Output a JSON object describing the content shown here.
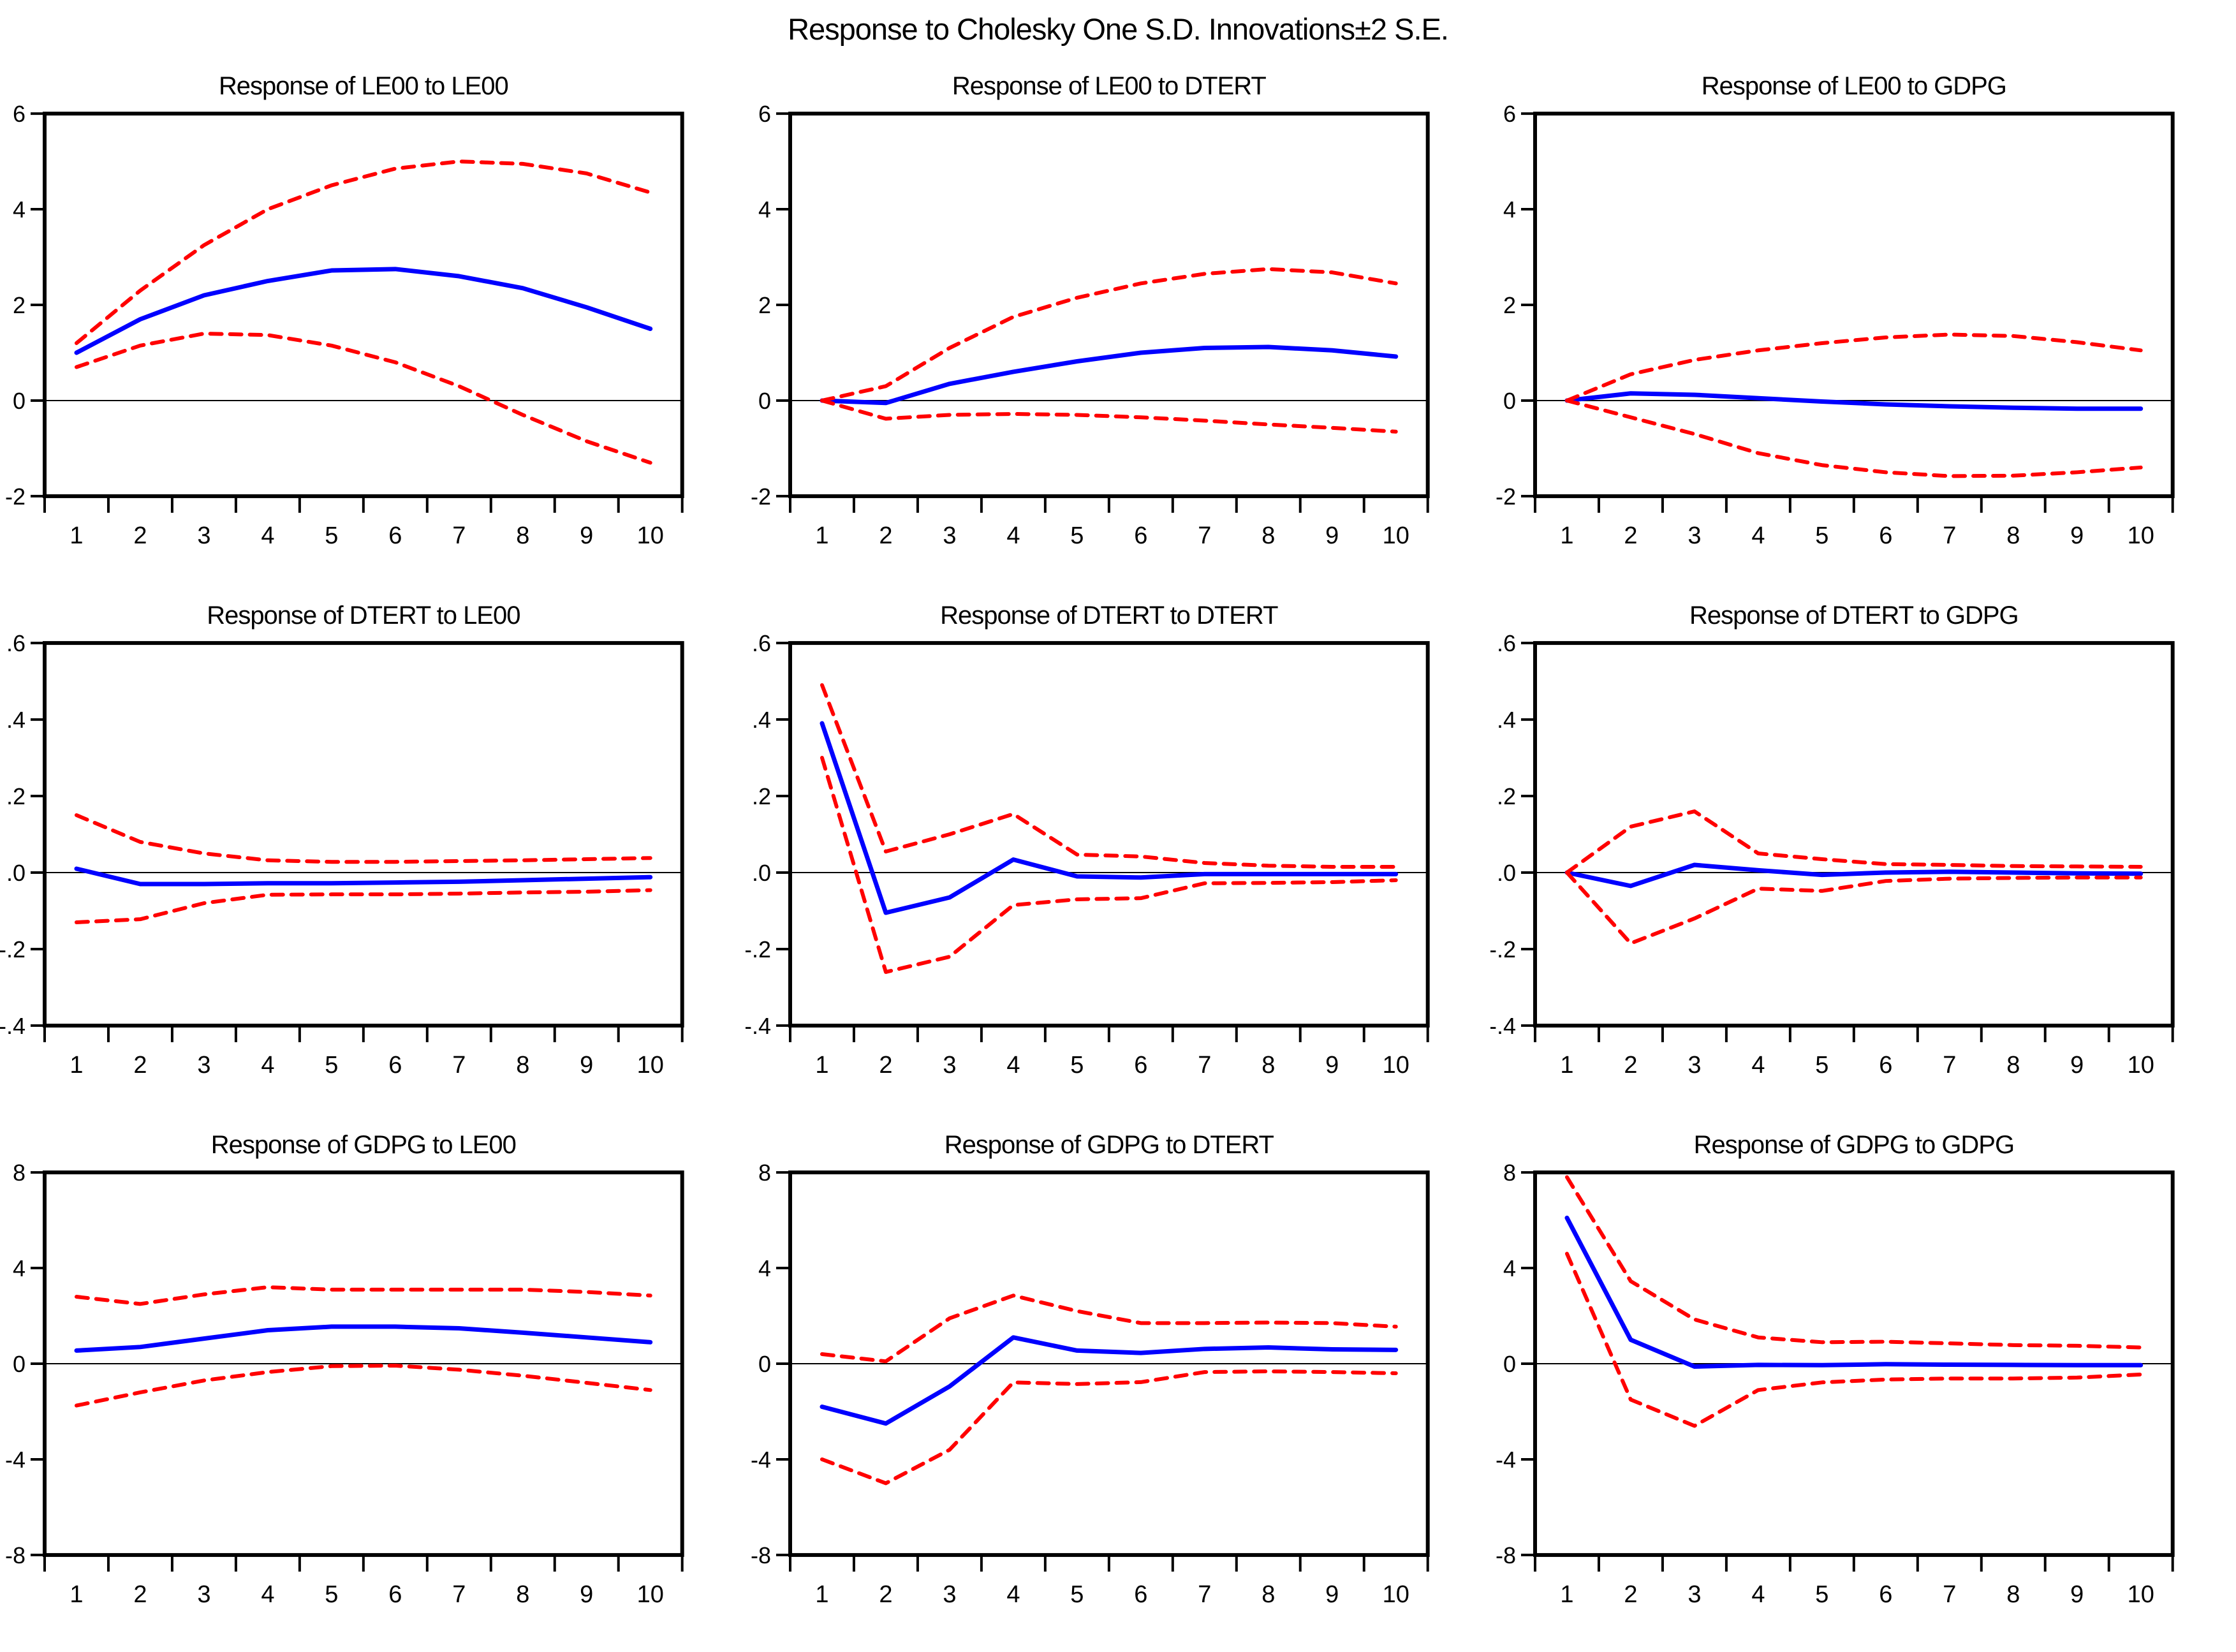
{
  "title": "Response to Cholesky One S.D. Innovations±2 S.E.",
  "colors": {
    "response": "#0000ff",
    "se_band": "#ff0000",
    "frame": "#000000",
    "zero_line": "#000000",
    "background": "#ffffff",
    "text": "#000000"
  },
  "chart_data": [
    {
      "id": "le00_le00",
      "type": "line",
      "title": "Response of LE00 to LE00",
      "x": [
        1,
        2,
        3,
        4,
        5,
        6,
        7,
        8,
        9,
        10
      ],
      "xtick_labels": [
        "1",
        "2",
        "3",
        "4",
        "5",
        "6",
        "7",
        "8",
        "9",
        "10"
      ],
      "ylim": [
        -2,
        6
      ],
      "yticks": [
        6,
        4,
        2,
        0,
        -2
      ],
      "ytick_labels": [
        "6",
        "4",
        "2",
        "0",
        "-2"
      ],
      "grid": false,
      "zero_line": true,
      "legend_position": "none",
      "series": [
        {
          "name": "response",
          "color": "#0000ff",
          "style": "solid",
          "values": [
            1.0,
            1.7,
            2.2,
            2.5,
            2.72,
            2.75,
            2.6,
            2.35,
            1.95,
            1.5
          ]
        },
        {
          "name": "upper_se_band",
          "color": "#ff0000",
          "style": "dashed",
          "values": [
            1.2,
            2.3,
            3.25,
            4.0,
            4.5,
            4.85,
            5.0,
            4.95,
            4.75,
            4.35
          ]
        },
        {
          "name": "lower_se_band",
          "color": "#ff0000",
          "style": "dashed",
          "values": [
            0.7,
            1.15,
            1.4,
            1.37,
            1.15,
            0.8,
            0.3,
            -0.3,
            -0.85,
            -1.3
          ]
        }
      ]
    },
    {
      "id": "le00_dtert",
      "type": "line",
      "title": "Response of LE00 to DTERT",
      "x": [
        1,
        2,
        3,
        4,
        5,
        6,
        7,
        8,
        9,
        10
      ],
      "xtick_labels": [
        "1",
        "2",
        "3",
        "4",
        "5",
        "6",
        "7",
        "8",
        "9",
        "10"
      ],
      "ylim": [
        -2,
        6
      ],
      "yticks": [
        6,
        4,
        2,
        0,
        -2
      ],
      "ytick_labels": [
        "6",
        "4",
        "2",
        "0",
        "-2"
      ],
      "grid": false,
      "zero_line": true,
      "legend_position": "none",
      "series": [
        {
          "name": "response",
          "color": "#0000ff",
          "style": "solid",
          "values": [
            0.0,
            -0.05,
            0.35,
            0.6,
            0.82,
            1.0,
            1.1,
            1.12,
            1.05,
            0.92
          ]
        },
        {
          "name": "upper_se_band",
          "color": "#ff0000",
          "style": "dashed",
          "values": [
            0.0,
            0.3,
            1.1,
            1.75,
            2.15,
            2.45,
            2.65,
            2.75,
            2.68,
            2.45
          ]
        },
        {
          "name": "lower_se_band",
          "color": "#ff0000",
          "style": "dashed",
          "values": [
            0.0,
            -0.38,
            -0.3,
            -0.28,
            -0.3,
            -0.35,
            -0.42,
            -0.5,
            -0.57,
            -0.65
          ]
        }
      ]
    },
    {
      "id": "le00_gdpg",
      "type": "line",
      "title": "Response of LE00 to GDPG",
      "x": [
        1,
        2,
        3,
        4,
        5,
        6,
        7,
        8,
        9,
        10
      ],
      "xtick_labels": [
        "1",
        "2",
        "3",
        "4",
        "5",
        "6",
        "7",
        "8",
        "9",
        "10"
      ],
      "ylim": [
        -2,
        6
      ],
      "yticks": [
        6,
        4,
        2,
        0,
        -2
      ],
      "ytick_labels": [
        "6",
        "4",
        "2",
        "0",
        "-2"
      ],
      "grid": false,
      "zero_line": true,
      "legend_position": "none",
      "series": [
        {
          "name": "response",
          "color": "#0000ff",
          "style": "solid",
          "values": [
            0.0,
            0.15,
            0.12,
            0.05,
            -0.02,
            -0.08,
            -0.12,
            -0.15,
            -0.17,
            -0.17
          ]
        },
        {
          "name": "upper_se_band",
          "color": "#ff0000",
          "style": "dashed",
          "values": [
            0.0,
            0.55,
            0.85,
            1.05,
            1.2,
            1.32,
            1.38,
            1.35,
            1.22,
            1.05
          ]
        },
        {
          "name": "lower_se_band",
          "color": "#ff0000",
          "style": "dashed",
          "values": [
            0.0,
            -0.35,
            -0.7,
            -1.1,
            -1.35,
            -1.5,
            -1.58,
            -1.57,
            -1.5,
            -1.4
          ]
        }
      ]
    },
    {
      "id": "dtert_le00",
      "type": "line",
      "title": "Response of DTERT to LE00",
      "x": [
        1,
        2,
        3,
        4,
        5,
        6,
        7,
        8,
        9,
        10
      ],
      "xtick_labels": [
        "1",
        "2",
        "3",
        "4",
        "5",
        "6",
        "7",
        "8",
        "9",
        "10"
      ],
      "ylim": [
        -0.4,
        0.6
      ],
      "yticks": [
        0.6,
        0.4,
        0.2,
        0.0,
        -0.2,
        -0.4
      ],
      "ytick_labels": [
        ".6",
        ".4",
        ".2",
        ".0",
        "-.2",
        "-.4"
      ],
      "grid": false,
      "zero_line": true,
      "legend_position": "none",
      "series": [
        {
          "name": "response",
          "color": "#0000ff",
          "style": "solid",
          "values": [
            0.01,
            -0.03,
            -0.03,
            -0.028,
            -0.028,
            -0.026,
            -0.024,
            -0.02,
            -0.016,
            -0.012
          ]
        },
        {
          "name": "upper_se_band",
          "color": "#ff0000",
          "style": "dashed",
          "values": [
            0.15,
            0.08,
            0.05,
            0.032,
            0.028,
            0.028,
            0.03,
            0.032,
            0.035,
            0.038
          ]
        },
        {
          "name": "lower_se_band",
          "color": "#ff0000",
          "style": "dashed",
          "values": [
            -0.13,
            -0.122,
            -0.08,
            -0.058,
            -0.057,
            -0.057,
            -0.055,
            -0.052,
            -0.05,
            -0.046
          ]
        }
      ]
    },
    {
      "id": "dtert_dtert",
      "type": "line",
      "title": "Response of DTERT to DTERT",
      "x": [
        1,
        2,
        3,
        4,
        5,
        6,
        7,
        8,
        9,
        10
      ],
      "xtick_labels": [
        "1",
        "2",
        "3",
        "4",
        "5",
        "6",
        "7",
        "8",
        "9",
        "10"
      ],
      "ylim": [
        -0.4,
        0.6
      ],
      "yticks": [
        0.6,
        0.4,
        0.2,
        0.0,
        -0.2,
        -0.4
      ],
      "ytick_labels": [
        ".6",
        ".4",
        ".2",
        ".0",
        "-.2",
        "-.4"
      ],
      "grid": false,
      "zero_line": true,
      "legend_position": "none",
      "series": [
        {
          "name": "response",
          "color": "#0000ff",
          "style": "solid",
          "values": [
            0.39,
            -0.105,
            -0.065,
            0.034,
            -0.01,
            -0.013,
            -0.004,
            -0.004,
            -0.004,
            -0.004
          ]
        },
        {
          "name": "upper_se_band",
          "color": "#ff0000",
          "style": "dashed",
          "values": [
            0.49,
            0.055,
            0.1,
            0.153,
            0.047,
            0.042,
            0.025,
            0.018,
            0.015,
            0.015
          ]
        },
        {
          "name": "lower_se_band",
          "color": "#ff0000",
          "style": "dashed",
          "values": [
            0.3,
            -0.26,
            -0.22,
            -0.085,
            -0.07,
            -0.067,
            -0.028,
            -0.027,
            -0.025,
            -0.02
          ]
        }
      ]
    },
    {
      "id": "dtert_gdpg",
      "type": "line",
      "title": "Response of DTERT to GDPG",
      "x": [
        1,
        2,
        3,
        4,
        5,
        6,
        7,
        8,
        9,
        10
      ],
      "xtick_labels": [
        "1",
        "2",
        "3",
        "4",
        "5",
        "6",
        "7",
        "8",
        "9",
        "10"
      ],
      "ylim": [
        -0.4,
        0.6
      ],
      "yticks": [
        0.6,
        0.4,
        0.2,
        0.0,
        -0.2,
        -0.4
      ],
      "ytick_labels": [
        ".6",
        ".4",
        ".2",
        ".0",
        "-.2",
        "-.4"
      ],
      "grid": false,
      "zero_line": true,
      "legend_position": "none",
      "series": [
        {
          "name": "response",
          "color": "#0000ff",
          "style": "solid",
          "values": [
            0.0,
            -0.035,
            0.02,
            0.006,
            -0.006,
            0.0,
            0.002,
            0.0,
            -0.002,
            -0.003
          ]
        },
        {
          "name": "upper_se_band",
          "color": "#ff0000",
          "style": "dashed",
          "values": [
            0.0,
            0.12,
            0.16,
            0.05,
            0.035,
            0.022,
            0.02,
            0.017,
            0.016,
            0.015
          ]
        },
        {
          "name": "lower_se_band",
          "color": "#ff0000",
          "style": "dashed",
          "values": [
            0.0,
            -0.185,
            -0.12,
            -0.042,
            -0.048,
            -0.022,
            -0.016,
            -0.014,
            -0.013,
            -0.013
          ]
        }
      ]
    },
    {
      "id": "gdpg_le00",
      "type": "line",
      "title": "Response of GDPG to LE00",
      "x": [
        1,
        2,
        3,
        4,
        5,
        6,
        7,
        8,
        9,
        10
      ],
      "xtick_labels": [
        "1",
        "2",
        "3",
        "4",
        "5",
        "6",
        "7",
        "8",
        "9",
        "10"
      ],
      "ylim": [
        -8,
        8
      ],
      "yticks": [
        8,
        4,
        0,
        -4,
        -8
      ],
      "ytick_labels": [
        "8",
        "4",
        "0",
        "-4",
        "-8"
      ],
      "grid": false,
      "zero_line": true,
      "legend_position": "none",
      "series": [
        {
          "name": "response",
          "color": "#0000ff",
          "style": "solid",
          "values": [
            0.55,
            0.7,
            1.05,
            1.4,
            1.55,
            1.55,
            1.48,
            1.3,
            1.1,
            0.9
          ]
        },
        {
          "name": "upper_se_band",
          "color": "#ff0000",
          "style": "dashed",
          "values": [
            2.8,
            2.5,
            2.9,
            3.2,
            3.1,
            3.1,
            3.1,
            3.1,
            3.0,
            2.85
          ]
        },
        {
          "name": "lower_se_band",
          "color": "#ff0000",
          "style": "dashed",
          "values": [
            -1.75,
            -1.2,
            -0.7,
            -0.35,
            -0.1,
            -0.08,
            -0.25,
            -0.5,
            -0.8,
            -1.1
          ]
        }
      ]
    },
    {
      "id": "gdpg_dtert",
      "type": "line",
      "title": "Response of GDPG to DTERT",
      "x": [
        1,
        2,
        3,
        4,
        5,
        6,
        7,
        8,
        9,
        10
      ],
      "xtick_labels": [
        "1",
        "2",
        "3",
        "4",
        "5",
        "6",
        "7",
        "8",
        "9",
        "10"
      ],
      "ylim": [
        -8,
        8
      ],
      "yticks": [
        8,
        4,
        0,
        -4,
        -8
      ],
      "ytick_labels": [
        "8",
        "4",
        "0",
        "-4",
        "-8"
      ],
      "grid": false,
      "zero_line": true,
      "legend_position": "none",
      "series": [
        {
          "name": "response",
          "color": "#0000ff",
          "style": "solid",
          "values": [
            -1.8,
            -2.5,
            -0.95,
            1.1,
            0.55,
            0.45,
            0.62,
            0.68,
            0.6,
            0.58
          ]
        },
        {
          "name": "upper_se_band",
          "color": "#ff0000",
          "style": "dashed",
          "values": [
            0.4,
            0.1,
            1.9,
            2.85,
            2.2,
            1.7,
            1.7,
            1.72,
            1.7,
            1.55
          ]
        },
        {
          "name": "lower_se_band",
          "color": "#ff0000",
          "style": "dashed",
          "values": [
            -4.0,
            -5.0,
            -3.6,
            -0.78,
            -0.85,
            -0.77,
            -0.35,
            -0.32,
            -0.35,
            -0.4
          ]
        }
      ]
    },
    {
      "id": "gdpg_gdpg",
      "type": "line",
      "title": "Response of GDPG to GDPG",
      "x": [
        1,
        2,
        3,
        4,
        5,
        6,
        7,
        8,
        9,
        10
      ],
      "xtick_labels": [
        "1",
        "2",
        "3",
        "4",
        "5",
        "6",
        "7",
        "8",
        "9",
        "10"
      ],
      "ylim": [
        -8,
        8
      ],
      "yticks": [
        8,
        4,
        0,
        -4,
        -8
      ],
      "ytick_labels": [
        "8",
        "4",
        "0",
        "-4",
        "-8"
      ],
      "grid": false,
      "zero_line": true,
      "legend_position": "none",
      "series": [
        {
          "name": "response",
          "color": "#0000ff",
          "style": "solid",
          "values": [
            6.1,
            1.0,
            -0.12,
            -0.05,
            -0.06,
            -0.02,
            -0.04,
            -0.05,
            -0.06,
            -0.06
          ]
        },
        {
          "name": "upper_se_band",
          "color": "#ff0000",
          "style": "dashed",
          "values": [
            7.8,
            3.45,
            1.85,
            1.1,
            0.9,
            0.92,
            0.85,
            0.78,
            0.75,
            0.68
          ]
        },
        {
          "name": "lower_se_band",
          "color": "#ff0000",
          "style": "dashed",
          "values": [
            4.6,
            -1.5,
            -2.6,
            -1.1,
            -0.78,
            -0.66,
            -0.62,
            -0.62,
            -0.58,
            -0.45
          ]
        }
      ]
    }
  ]
}
